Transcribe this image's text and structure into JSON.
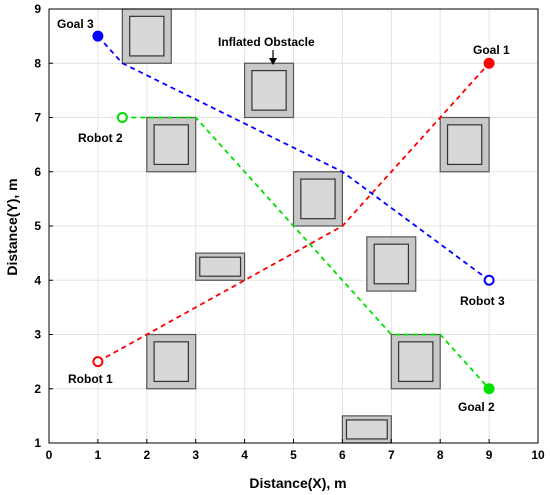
{
  "chart_data": {
    "type": "line",
    "xlabel": "Distance(X), m",
    "ylabel": "Distance(Y), m",
    "xlim": [
      0,
      10
    ],
    "ylim": [
      1,
      9
    ],
    "xticks": [
      "0",
      "1",
      "2",
      "3",
      "4",
      "5",
      "6",
      "7",
      "8",
      "9",
      "10"
    ],
    "yticks": [
      "1",
      "2",
      "3",
      "4",
      "5",
      "6",
      "7",
      "8",
      "9"
    ],
    "grid": true,
    "series": [
      {
        "color": "#ff0000",
        "start": "Robot 1",
        "goal": "Goal 1",
        "points": [
          [
            1,
            2.5
          ],
          [
            6,
            5
          ],
          [
            9,
            8
          ]
        ]
      },
      {
        "color": "#00e000",
        "start": "Robot 2",
        "goal": "Goal 2",
        "points": [
          [
            1.5,
            7
          ],
          [
            3,
            7
          ],
          [
            7,
            3
          ],
          [
            8,
            3
          ],
          [
            9,
            2
          ]
        ]
      },
      {
        "color": "#0000ff",
        "start": "Robot 3",
        "goal": "Goal 3",
        "points": [
          [
            9,
            4
          ],
          [
            6,
            6
          ],
          [
            1.5,
            8
          ],
          [
            1,
            8.5
          ]
        ]
      }
    ],
    "obstacles": [
      {
        "x": [
          1.5,
          2.5
        ],
        "y": [
          8,
          9
        ]
      },
      {
        "x": [
          4,
          5
        ],
        "y": [
          7,
          8
        ]
      },
      {
        "x": [
          2,
          3
        ],
        "y": [
          6,
          7
        ]
      },
      {
        "x": [
          8,
          9
        ],
        "y": [
          6,
          7
        ]
      },
      {
        "x": [
          5,
          6
        ],
        "y": [
          5,
          6
        ]
      },
      {
        "x": [
          3,
          4
        ],
        "y": [
          4,
          4.5
        ]
      },
      {
        "x": [
          6.5,
          7.5
        ],
        "y": [
          3.8,
          4.8
        ]
      },
      {
        "x": [
          2,
          3
        ],
        "y": [
          2,
          3
        ]
      },
      {
        "x": [
          7,
          8
        ],
        "y": [
          2,
          3
        ]
      },
      {
        "x": [
          6,
          7
        ],
        "y": [
          1,
          1.5
        ]
      }
    ],
    "labels": {
      "robot1": "Robot 1",
      "robot2": "Robot 2",
      "robot3": "Robot 3",
      "goal1": "Goal 1",
      "goal2": "Goal 2",
      "goal3": "Goal 3",
      "inflated": "Inflated Obstacle"
    }
  }
}
